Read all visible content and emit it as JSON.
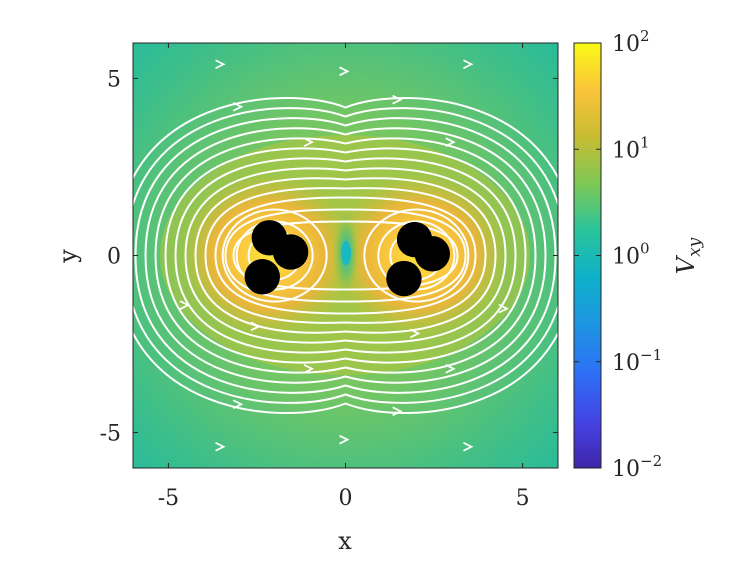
{
  "chart_data": {
    "type": "heatmap",
    "xlabel": "x",
    "ylabel": "y",
    "xlim": [
      -6,
      6
    ],
    "ylim": [
      -6,
      6
    ],
    "x_ticks": [
      {
        "value": -5,
        "label": "-5"
      },
      {
        "value": 0,
        "label": "0"
      },
      {
        "value": 5,
        "label": "5"
      }
    ],
    "y_ticks": [
      {
        "value": 5,
        "label": "5"
      },
      {
        "value": 0,
        "label": "0"
      },
      {
        "value": -5,
        "label": "-5"
      }
    ],
    "colorbar": {
      "label_base": "V",
      "label_sub": "xy",
      "scale": "log",
      "range": [
        0.01,
        100
      ],
      "ticks": [
        {
          "value": 100,
          "base": "10",
          "exp": "2"
        },
        {
          "value": 10,
          "base": "10",
          "exp": "1"
        },
        {
          "value": 1,
          "base": "10",
          "exp": "0"
        },
        {
          "value": 0.1,
          "base": "10",
          "exp": "−1"
        },
        {
          "value": 0.01,
          "base": "10",
          "exp": "−2"
        }
      ],
      "colormap": "parula"
    },
    "particles": [
      {
        "x": -2.15,
        "y": 0.5
      },
      {
        "x": -1.55,
        "y": 0.1
      },
      {
        "x": -2.35,
        "y": -0.6
      },
      {
        "x": 1.95,
        "y": 0.45
      },
      {
        "x": 2.45,
        "y": 0.05
      },
      {
        "x": 1.65,
        "y": -0.65
      }
    ],
    "particle_radius": 0.5,
    "particle_color": "#000000",
    "streamline_color": "#ffffff",
    "streamlines": "white flow streamlines with arrowheads, closed loops circulating around the two particle clusters"
  }
}
